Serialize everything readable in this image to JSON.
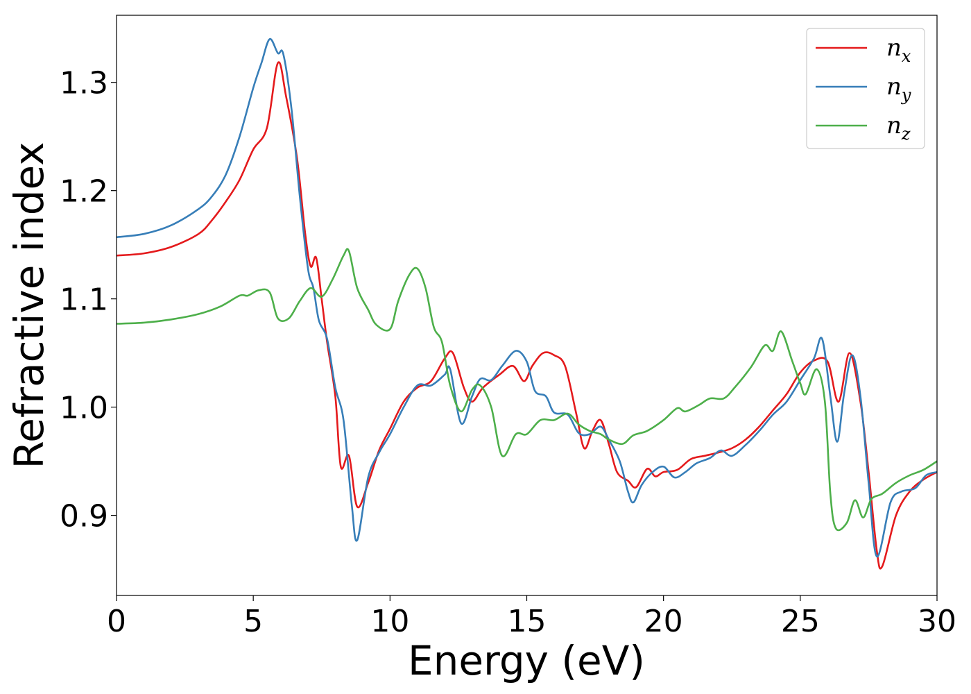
{
  "chart_data": {
    "type": "line",
    "title": "",
    "xlabel": "Energy (eV)",
    "ylabel": "Refractive index",
    "xlim": [
      0,
      30
    ],
    "ylim": [
      0.826,
      1.362
    ],
    "xticks": [
      0,
      5,
      10,
      15,
      20,
      25,
      30
    ],
    "xtick_labels": [
      "0",
      "5",
      "10",
      "15",
      "20",
      "25",
      "30"
    ],
    "yticks": [
      0.9,
      1.0,
      1.1,
      1.2,
      1.3
    ],
    "ytick_labels": [
      "0.9",
      "1.0",
      "1.1",
      "1.2",
      "1.3"
    ],
    "grid": false,
    "legend_position": "top-right",
    "series": [
      {
        "name": "n_x",
        "legend_base": "n",
        "legend_sub": "x",
        "color": "#e41a1c",
        "points": [
          [
            0,
            1.14
          ],
          [
            1,
            1.142
          ],
          [
            2,
            1.148
          ],
          [
            3,
            1.16
          ],
          [
            3.5,
            1.173
          ],
          [
            4,
            1.19
          ],
          [
            4.5,
            1.21
          ],
          [
            5,
            1.238
          ],
          [
            5.5,
            1.258
          ],
          [
            5.9,
            1.318
          ],
          [
            6.2,
            1.287
          ],
          [
            6.6,
            1.23
          ],
          [
            6.9,
            1.16
          ],
          [
            7.1,
            1.13
          ],
          [
            7.3,
            1.138
          ],
          [
            7.5,
            1.1
          ],
          [
            7.7,
            1.06
          ],
          [
            8.0,
            1.01
          ],
          [
            8.2,
            0.945
          ],
          [
            8.5,
            0.955
          ],
          [
            8.8,
            0.908
          ],
          [
            9.2,
            0.93
          ],
          [
            9.6,
            0.96
          ],
          [
            10.0,
            0.98
          ],
          [
            10.5,
            1.005
          ],
          [
            11.0,
            1.018
          ],
          [
            11.5,
            1.024
          ],
          [
            12.0,
            1.045
          ],
          [
            12.3,
            1.05
          ],
          [
            12.7,
            1.018
          ],
          [
            13.0,
            1.005
          ],
          [
            13.4,
            1.018
          ],
          [
            14.0,
            1.03
          ],
          [
            14.5,
            1.038
          ],
          [
            14.9,
            1.024
          ],
          [
            15.2,
            1.038
          ],
          [
            15.6,
            1.05
          ],
          [
            16.0,
            1.048
          ],
          [
            16.4,
            1.038
          ],
          [
            16.8,
            0.995
          ],
          [
            17.1,
            0.962
          ],
          [
            17.4,
            0.978
          ],
          [
            17.7,
            0.988
          ],
          [
            18.0,
            0.966
          ],
          [
            18.3,
            0.94
          ],
          [
            18.7,
            0.932
          ],
          [
            19.0,
            0.926
          ],
          [
            19.4,
            0.943
          ],
          [
            19.7,
            0.936
          ],
          [
            20.0,
            0.94
          ],
          [
            20.5,
            0.942
          ],
          [
            21.0,
            0.952
          ],
          [
            21.5,
            0.955
          ],
          [
            22.0,
            0.958
          ],
          [
            22.5,
            0.962
          ],
          [
            23.0,
            0.97
          ],
          [
            23.5,
            0.982
          ],
          [
            24.0,
            0.997
          ],
          [
            24.5,
            1.012
          ],
          [
            25.0,
            1.032
          ],
          [
            25.5,
            1.043
          ],
          [
            26.0,
            1.042
          ],
          [
            26.4,
            1.005
          ],
          [
            26.8,
            1.05
          ],
          [
            27.2,
            1.005
          ],
          [
            27.5,
            0.94
          ],
          [
            27.8,
            0.867
          ],
          [
            28.0,
            0.853
          ],
          [
            28.5,
            0.9
          ],
          [
            29.0,
            0.922
          ],
          [
            29.5,
            0.933
          ],
          [
            30.0,
            0.94
          ]
        ]
      },
      {
        "name": "n_y",
        "legend_base": "n",
        "legend_sub": "y",
        "color": "#377eb8",
        "points": [
          [
            0,
            1.157
          ],
          [
            1,
            1.16
          ],
          [
            2,
            1.168
          ],
          [
            3,
            1.183
          ],
          [
            3.5,
            1.195
          ],
          [
            4,
            1.215
          ],
          [
            4.5,
            1.25
          ],
          [
            5,
            1.295
          ],
          [
            5.3,
            1.318
          ],
          [
            5.6,
            1.34
          ],
          [
            5.9,
            1.327
          ],
          [
            6.1,
            1.326
          ],
          [
            6.4,
            1.275
          ],
          [
            6.7,
            1.195
          ],
          [
            7.0,
            1.128
          ],
          [
            7.2,
            1.11
          ],
          [
            7.4,
            1.08
          ],
          [
            7.7,
            1.063
          ],
          [
            8.0,
            1.018
          ],
          [
            8.3,
            0.988
          ],
          [
            8.6,
            0.91
          ],
          [
            8.8,
            0.877
          ],
          [
            9.2,
            0.935
          ],
          [
            9.6,
            0.958
          ],
          [
            10.0,
            0.975
          ],
          [
            10.5,
            1.0
          ],
          [
            11.0,
            1.02
          ],
          [
            11.5,
            1.02
          ],
          [
            12.0,
            1.03
          ],
          [
            12.2,
            1.035
          ],
          [
            12.6,
            0.985
          ],
          [
            13.0,
            1.01
          ],
          [
            13.3,
            1.026
          ],
          [
            13.7,
            1.025
          ],
          [
            14.1,
            1.038
          ],
          [
            14.6,
            1.052
          ],
          [
            15.0,
            1.042
          ],
          [
            15.3,
            1.015
          ],
          [
            15.7,
            1.01
          ],
          [
            16.0,
            0.995
          ],
          [
            16.5,
            0.993
          ],
          [
            16.9,
            0.976
          ],
          [
            17.3,
            0.975
          ],
          [
            17.7,
            0.982
          ],
          [
            18.0,
            0.97
          ],
          [
            18.4,
            0.95
          ],
          [
            18.7,
            0.922
          ],
          [
            18.9,
            0.912
          ],
          [
            19.2,
            0.928
          ],
          [
            19.6,
            0.94
          ],
          [
            20.0,
            0.945
          ],
          [
            20.4,
            0.935
          ],
          [
            20.8,
            0.94
          ],
          [
            21.2,
            0.948
          ],
          [
            21.7,
            0.953
          ],
          [
            22.1,
            0.96
          ],
          [
            22.5,
            0.955
          ],
          [
            23.0,
            0.965
          ],
          [
            23.5,
            0.978
          ],
          [
            24.0,
            0.993
          ],
          [
            24.5,
            1.005
          ],
          [
            25.0,
            1.025
          ],
          [
            25.5,
            1.045
          ],
          [
            25.8,
            1.063
          ],
          [
            26.1,
            1.01
          ],
          [
            26.35,
            0.968
          ],
          [
            26.6,
            1.012
          ],
          [
            26.9,
            1.048
          ],
          [
            27.2,
            1.01
          ],
          [
            27.5,
            0.93
          ],
          [
            27.8,
            0.862
          ],
          [
            28.3,
            0.912
          ],
          [
            28.7,
            0.922
          ],
          [
            29.2,
            0.925
          ],
          [
            29.6,
            0.937
          ],
          [
            30.0,
            0.94
          ]
        ]
      },
      {
        "name": "n_z",
        "legend_base": "n",
        "legend_sub": "z",
        "color": "#4daf4a",
        "points": [
          [
            0,
            1.077
          ],
          [
            1,
            1.078
          ],
          [
            2,
            1.081
          ],
          [
            3,
            1.086
          ],
          [
            3.8,
            1.093
          ],
          [
            4.5,
            1.103
          ],
          [
            4.8,
            1.103
          ],
          [
            5.2,
            1.108
          ],
          [
            5.6,
            1.106
          ],
          [
            5.9,
            1.082
          ],
          [
            6.3,
            1.082
          ],
          [
            6.7,
            1.098
          ],
          [
            7.1,
            1.11
          ],
          [
            7.5,
            1.102
          ],
          [
            7.9,
            1.118
          ],
          [
            8.3,
            1.14
          ],
          [
            8.5,
            1.144
          ],
          [
            8.8,
            1.11
          ],
          [
            9.2,
            1.09
          ],
          [
            9.5,
            1.076
          ],
          [
            10.0,
            1.072
          ],
          [
            10.3,
            1.098
          ],
          [
            10.7,
            1.122
          ],
          [
            11.0,
            1.128
          ],
          [
            11.3,
            1.11
          ],
          [
            11.6,
            1.074
          ],
          [
            11.9,
            1.06
          ],
          [
            12.2,
            1.02
          ],
          [
            12.6,
            0.996
          ],
          [
            13.0,
            1.016
          ],
          [
            13.3,
            1.02
          ],
          [
            13.7,
            1.0
          ],
          [
            14.1,
            0.955
          ],
          [
            14.6,
            0.975
          ],
          [
            15.0,
            0.975
          ],
          [
            15.5,
            0.988
          ],
          [
            16.0,
            0.988
          ],
          [
            16.5,
            0.994
          ],
          [
            16.9,
            0.984
          ],
          [
            17.3,
            0.978
          ],
          [
            17.7,
            0.975
          ],
          [
            18.0,
            0.97
          ],
          [
            18.5,
            0.966
          ],
          [
            18.9,
            0.974
          ],
          [
            19.4,
            0.978
          ],
          [
            20.0,
            0.988
          ],
          [
            20.5,
            0.999
          ],
          [
            20.8,
            0.996
          ],
          [
            21.3,
            1.002
          ],
          [
            21.7,
            1.008
          ],
          [
            22.2,
            1.008
          ],
          [
            22.6,
            1.018
          ],
          [
            23.2,
            1.037
          ],
          [
            23.7,
            1.057
          ],
          [
            24.0,
            1.052
          ],
          [
            24.3,
            1.07
          ],
          [
            24.7,
            1.043
          ],
          [
            25.0,
            1.022
          ],
          [
            25.2,
            1.012
          ],
          [
            25.6,
            1.035
          ],
          [
            25.9,
            1.005
          ],
          [
            26.1,
            0.92
          ],
          [
            26.3,
            0.888
          ],
          [
            26.7,
            0.893
          ],
          [
            27.0,
            0.914
          ],
          [
            27.3,
            0.898
          ],
          [
            27.6,
            0.915
          ],
          [
            28.0,
            0.92
          ],
          [
            28.5,
            0.93
          ],
          [
            29.0,
            0.937
          ],
          [
            29.5,
            0.942
          ],
          [
            30.0,
            0.95
          ]
        ]
      }
    ]
  }
}
